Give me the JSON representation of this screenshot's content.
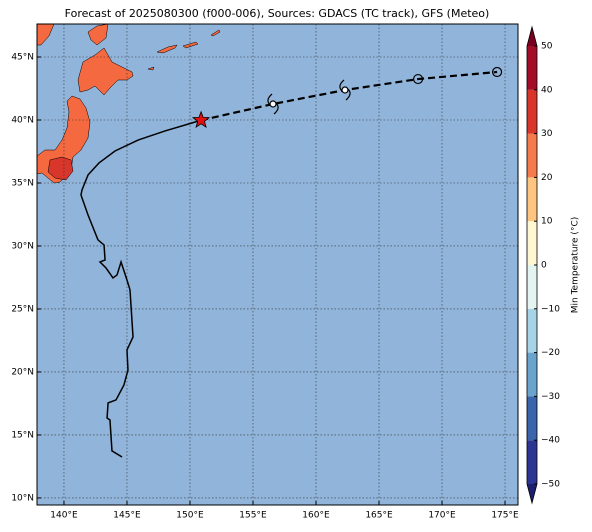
{
  "chart_data": {
    "type": "map",
    "title": "Forecast of 2025080300 (f000-006), Sources: GDACS (TC track), GFS (Meteo)",
    "xlim": [
      137.86,
      176.03
    ],
    "ylim": [
      9.44,
      47.62
    ],
    "xticks": [
      {
        "value": 140,
        "label": "140°E"
      },
      {
        "value": 145,
        "label": "145°E"
      },
      {
        "value": 150,
        "label": "150°E"
      },
      {
        "value": 155,
        "label": "155°E"
      },
      {
        "value": 160,
        "label": "160°E"
      },
      {
        "value": 165,
        "label": "165°E"
      },
      {
        "value": 170,
        "label": "170°E"
      },
      {
        "value": 175,
        "label": "175°E"
      }
    ],
    "yticks": [
      {
        "value": 10,
        "label": "10°N"
      },
      {
        "value": 15,
        "label": "15°N"
      },
      {
        "value": 20,
        "label": "20°N"
      },
      {
        "value": 25,
        "label": "25°N"
      },
      {
        "value": 30,
        "label": "30°N"
      },
      {
        "value": 35,
        "label": "35°N"
      },
      {
        "value": 40,
        "label": "40°N"
      },
      {
        "value": 45,
        "label": "45°N"
      }
    ],
    "grid": true,
    "ocean_color": "#91b4da",
    "track": {
      "color": "#000000",
      "lon": [
        144.61,
        143.81,
        143.65,
        143.42,
        143.5,
        144.13,
        144.76,
        145.08,
        145.0,
        145.48,
        145.24,
        145.0,
        144.53,
        144.21,
        143.89,
        143.34,
        142.86,
        143.26,
        143.18,
        142.7,
        141.91,
        141.35,
        141.43,
        141.91,
        142.78,
        144.05,
        145.88,
        148.02,
        150.88
      ],
      "lat": [
        13.25,
        13.73,
        16.19,
        16.35,
        17.54,
        17.78,
        18.97,
        20.16,
        21.75,
        22.78,
        26.51,
        27.3,
        28.73,
        27.7,
        27.46,
        28.25,
        28.73,
        28.89,
        30.08,
        30.48,
        32.46,
        34.05,
        34.45,
        35.64,
        36.59,
        37.54,
        38.41,
        39.13,
        39.98
      ]
    },
    "forecast": {
      "color": "#000000",
      "star_color": "#e01010",
      "lon": [
        150.88,
        156.59,
        162.3,
        168.1,
        174.37
      ],
      "lat": [
        39.98,
        41.27,
        42.38,
        43.25,
        43.81
      ],
      "markers": [
        "star",
        "storm",
        "storm",
        "circle",
        "circle"
      ]
    },
    "colorbar": {
      "label": "Min Temperature (°C)",
      "lim": [
        -50,
        50
      ],
      "ticks": [
        {
          "value": -50,
          "label": "−50"
        },
        {
          "value": -40,
          "label": "−40"
        },
        {
          "value": -30,
          "label": "−30"
        },
        {
          "value": -20,
          "label": "−20"
        },
        {
          "value": -10,
          "label": "−10"
        },
        0,
        10,
        20,
        30,
        40,
        50
      ],
      "colors": [
        "#2c3592",
        "#3a64ab",
        "#6aa3cc",
        "#a6d3e6",
        "#e4f4f1",
        "#fff7d2",
        "#fdc57f",
        "#f57a4c",
        "#d8352b",
        "#a30d27"
      ],
      "extend_colors": [
        "#1c1f6e",
        "#7a0020"
      ]
    }
  }
}
